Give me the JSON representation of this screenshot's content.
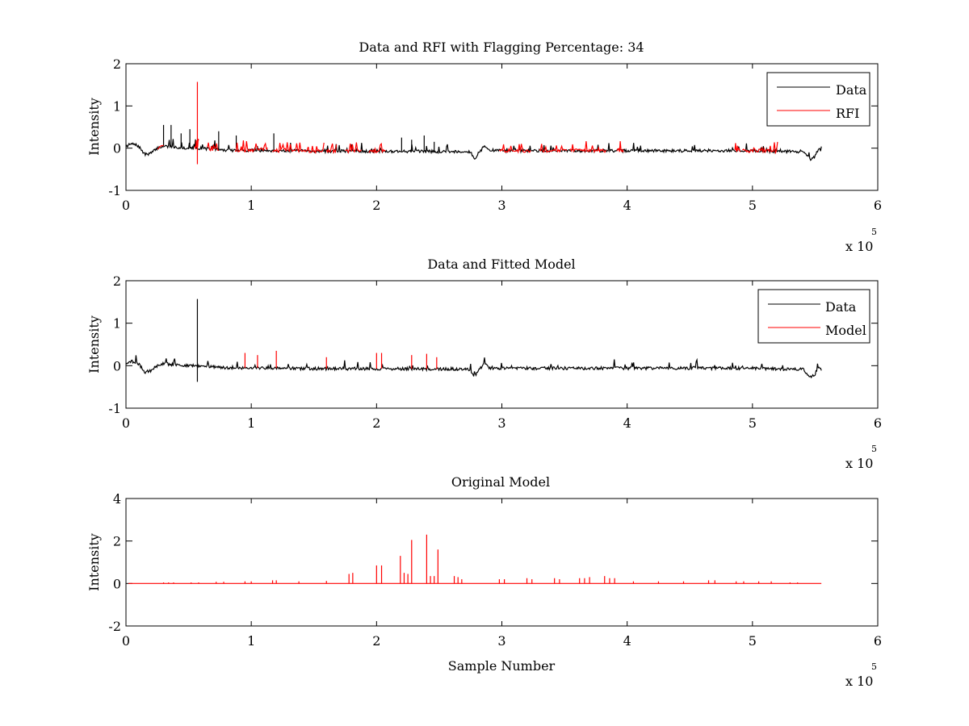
{
  "chart_data": [
    {
      "type": "line",
      "title": "Data and RFI with Flagging Percentage: 34",
      "xlabel": "",
      "ylabel": "Intensity",
      "xlim": [
        0,
        6
      ],
      "ylim": [
        -1,
        2
      ],
      "xticks": [
        "0",
        "1",
        "2",
        "3",
        "4",
        "5",
        "6"
      ],
      "yticks": [
        "-1",
        "0",
        "1",
        "2"
      ],
      "x_exponent": {
        "prefix": "x 10",
        "power": "5"
      },
      "legend": {
        "position": "top-right",
        "entries": [
          "Data",
          "RFI"
        ]
      },
      "series": [
        {
          "name": "Data",
          "color": "#000000",
          "x": [
            0,
            0.05,
            0.1,
            0.15,
            0.2,
            0.25,
            0.3,
            0.4,
            0.5,
            0.6,
            0.8,
            1.0,
            1.5,
            2.0,
            2.5,
            2.7,
            2.75,
            2.78,
            2.82,
            2.86,
            2.9,
            3.0,
            3.5,
            4.0,
            4.5,
            5.0,
            5.3,
            5.4,
            5.44,
            5.47,
            5.5,
            5.53,
            5.55
          ],
          "y": [
            0.05,
            0.1,
            0.05,
            -0.15,
            -0.12,
            0.0,
            0.05,
            0.02,
            0.0,
            0.0,
            -0.05,
            -0.05,
            -0.07,
            -0.07,
            -0.08,
            -0.08,
            -0.1,
            -0.25,
            -0.1,
            0.05,
            -0.05,
            -0.06,
            -0.06,
            -0.06,
            -0.06,
            -0.06,
            -0.08,
            -0.08,
            -0.2,
            -0.28,
            -0.2,
            0.0,
            -0.1
          ],
          "peaks": [
            {
              "x": 0.3,
              "y": 0.55
            },
            {
              "x": 0.36,
              "y": 0.55
            },
            {
              "x": 0.44,
              "y": 0.35
            },
            {
              "x": 0.51,
              "y": 0.45
            },
            {
              "x": 0.74,
              "y": 0.4
            },
            {
              "x": 0.88,
              "y": 0.3
            },
            {
              "x": 1.18,
              "y": 0.35
            },
            {
              "x": 2.2,
              "y": 0.25
            },
            {
              "x": 2.28,
              "y": 0.2
            },
            {
              "x": 2.38,
              "y": 0.3
            },
            {
              "x": 2.46,
              "y": 0.15
            }
          ]
        },
        {
          "name": "RFI",
          "color": "#ff0000",
          "segments": [
            [
              0.25,
              0.3
            ],
            [
              0.55,
              0.58
            ],
            [
              0.65,
              0.74
            ],
            [
              0.87,
              1.13
            ],
            [
              1.17,
              1.58
            ],
            [
              1.6,
              1.68
            ],
            [
              1.75,
              1.88
            ],
            [
              1.94,
              2.07
            ],
            [
              2.98,
              3.23
            ],
            [
              3.3,
              3.52
            ],
            [
              3.54,
              3.83
            ],
            [
              3.92,
              3.97
            ],
            [
              4.86,
              4.9
            ],
            [
              4.92,
              5.2
            ]
          ],
          "spike": {
            "x": 0.57,
            "ymin": -0.38,
            "ymax": 1.57
          }
        }
      ]
    },
    {
      "type": "line",
      "title": "Data and Fitted Model",
      "xlabel": "",
      "ylabel": "Intensity",
      "xlim": [
        0,
        6
      ],
      "ylim": [
        -1,
        2
      ],
      "xticks": [
        "0",
        "1",
        "2",
        "3",
        "4",
        "5",
        "6"
      ],
      "yticks": [
        "-1",
        "0",
        "1",
        "2"
      ],
      "x_exponent": {
        "prefix": "x 10",
        "power": "5"
      },
      "legend": {
        "position": "top-right",
        "entries": [
          "Data",
          "Model"
        ]
      },
      "series": [
        {
          "name": "Data",
          "color": "#000000",
          "x": [
            0,
            0.05,
            0.1,
            0.15,
            0.2,
            0.25,
            0.3,
            0.4,
            0.5,
            0.6,
            0.8,
            1.0,
            1.5,
            2.0,
            2.5,
            2.7,
            2.75,
            2.78,
            2.82,
            2.86,
            2.9,
            3.0,
            3.5,
            4.0,
            4.5,
            5.0,
            5.3,
            5.4,
            5.44,
            5.47,
            5.5,
            5.53,
            5.55
          ],
          "y": [
            0.05,
            0.1,
            0.05,
            -0.15,
            -0.12,
            0.0,
            0.05,
            0.02,
            0.0,
            0.0,
            -0.05,
            -0.05,
            -0.07,
            -0.07,
            -0.08,
            -0.08,
            -0.1,
            -0.25,
            -0.1,
            0.05,
            -0.05,
            -0.06,
            -0.06,
            -0.06,
            -0.06,
            -0.06,
            -0.08,
            -0.08,
            -0.2,
            -0.28,
            -0.2,
            0.0,
            -0.1
          ],
          "spike": {
            "x": 0.57,
            "ymin": -0.38,
            "ymax": 1.57
          }
        },
        {
          "name": "Model",
          "color": "#ff0000",
          "peaks": [
            {
              "x": 0.95,
              "y": 0.3
            },
            {
              "x": 1.05,
              "y": 0.25
            },
            {
              "x": 1.2,
              "y": 0.35
            },
            {
              "x": 1.6,
              "y": 0.2
            },
            {
              "x": 2.0,
              "y": 0.3
            },
            {
              "x": 2.04,
              "y": 0.3
            },
            {
              "x": 2.28,
              "y": 0.25
            },
            {
              "x": 2.4,
              "y": 0.28
            },
            {
              "x": 2.48,
              "y": 0.2
            }
          ]
        }
      ]
    },
    {
      "type": "line",
      "title": "Original Model",
      "xlabel": "Sample Number",
      "ylabel": "Intensity",
      "xlim": [
        0,
        6
      ],
      "ylim": [
        -2,
        4
      ],
      "xticks": [
        "0",
        "1",
        "2",
        "3",
        "4",
        "5",
        "6"
      ],
      "yticks": [
        "-2",
        "0",
        "2",
        "4"
      ],
      "x_exponent": {
        "prefix": "x 10",
        "power": "5"
      },
      "series": [
        {
          "name": "Model",
          "color": "#ff0000",
          "baseline": {
            "x": [
              0.02,
              5.55
            ],
            "y": 0
          },
          "peaks": [
            {
              "x": 0.3,
              "y": 0.05
            },
            {
              "x": 0.34,
              "y": 0.05
            },
            {
              "x": 0.38,
              "y": 0.05
            },
            {
              "x": 0.52,
              "y": 0.05
            },
            {
              "x": 0.58,
              "y": 0.05
            },
            {
              "x": 0.72,
              "y": 0.08
            },
            {
              "x": 0.78,
              "y": 0.08
            },
            {
              "x": 0.95,
              "y": 0.1
            },
            {
              "x": 1.0,
              "y": 0.1
            },
            {
              "x": 1.17,
              "y": 0.15
            },
            {
              "x": 1.2,
              "y": 0.15
            },
            {
              "x": 1.38,
              "y": 0.1
            },
            {
              "x": 1.6,
              "y": 0.12
            },
            {
              "x": 1.78,
              "y": 0.45
            },
            {
              "x": 1.81,
              "y": 0.5
            },
            {
              "x": 2.0,
              "y": 0.85
            },
            {
              "x": 2.04,
              "y": 0.85
            },
            {
              "x": 2.19,
              "y": 1.3
            },
            {
              "x": 2.22,
              "y": 0.5
            },
            {
              "x": 2.25,
              "y": 0.45
            },
            {
              "x": 2.28,
              "y": 2.05
            },
            {
              "x": 2.4,
              "y": 2.3
            },
            {
              "x": 2.43,
              "y": 0.35
            },
            {
              "x": 2.46,
              "y": 0.35
            },
            {
              "x": 2.49,
              "y": 1.6
            },
            {
              "x": 2.62,
              "y": 0.35
            },
            {
              "x": 2.65,
              "y": 0.3
            },
            {
              "x": 2.68,
              "y": 0.2
            },
            {
              "x": 2.98,
              "y": 0.2
            },
            {
              "x": 3.02,
              "y": 0.2
            },
            {
              "x": 3.2,
              "y": 0.25
            },
            {
              "x": 3.24,
              "y": 0.2
            },
            {
              "x": 3.42,
              "y": 0.25
            },
            {
              "x": 3.46,
              "y": 0.2
            },
            {
              "x": 3.62,
              "y": 0.25
            },
            {
              "x": 3.66,
              "y": 0.25
            },
            {
              "x": 3.7,
              "y": 0.3
            },
            {
              "x": 3.82,
              "y": 0.35
            },
            {
              "x": 3.86,
              "y": 0.25
            },
            {
              "x": 3.9,
              "y": 0.25
            },
            {
              "x": 4.05,
              "y": 0.1
            },
            {
              "x": 4.25,
              "y": 0.1
            },
            {
              "x": 4.45,
              "y": 0.1
            },
            {
              "x": 4.65,
              "y": 0.15
            },
            {
              "x": 4.7,
              "y": 0.15
            },
            {
              "x": 4.87,
              "y": 0.1
            },
            {
              "x": 4.93,
              "y": 0.1
            },
            {
              "x": 5.05,
              "y": 0.1
            },
            {
              "x": 5.15,
              "y": 0.1
            },
            {
              "x": 5.3,
              "y": 0.05
            },
            {
              "x": 5.36,
              "y": 0.05
            }
          ]
        }
      ]
    }
  ]
}
